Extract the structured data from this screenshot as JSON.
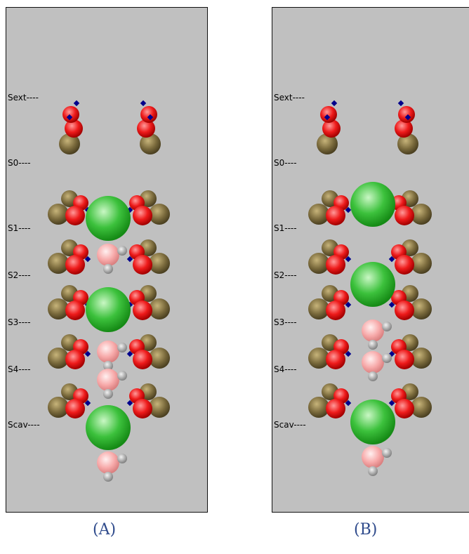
{
  "panels": [
    {
      "id": "A",
      "caption": "(A)",
      "site_labels": [
        "Sext----",
        "S0----",
        "S1----",
        "S2----",
        "S3----",
        "S4----",
        "Scav----"
      ]
    },
    {
      "id": "B",
      "caption": "(B)",
      "site_labels": [
        "Sext----",
        "S0----",
        "S1----",
        "S2----",
        "S3----",
        "S4----",
        "Scav----"
      ]
    }
  ],
  "colors": {
    "background": "#c0c0c0",
    "potassium": "#2fae2f",
    "water_oxygen": "#f4a6a6",
    "hydrogen": "#a9a9a9",
    "carbonyl_oxygen": "#e8141a",
    "carbon": "#7a6a3c",
    "nitrogen": "#00008b",
    "caption": "#2f4b8c"
  }
}
